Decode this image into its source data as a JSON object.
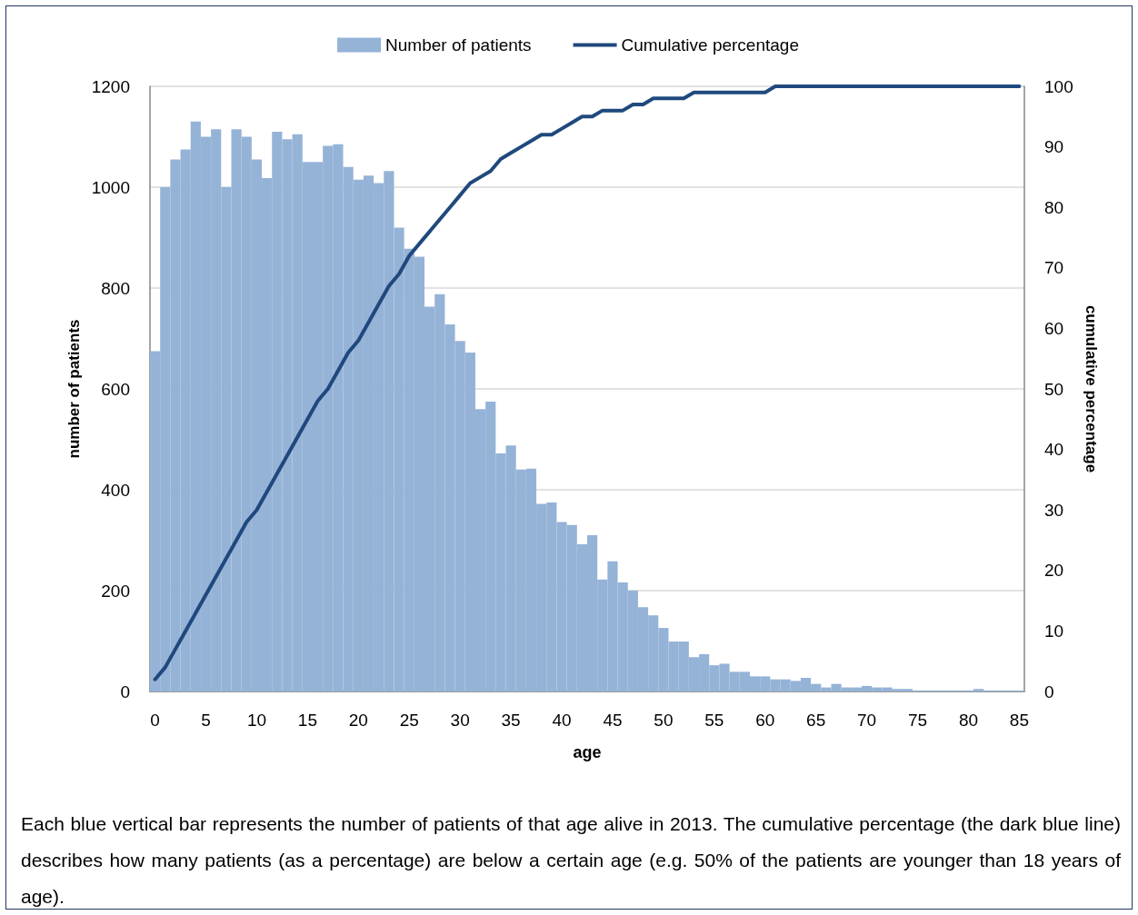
{
  "chart_data": {
    "type": "bar",
    "xlabel": "age",
    "ylabel": "number of patients",
    "y2label": "cumulative percentage",
    "categories": [
      "0",
      null,
      null,
      null,
      null,
      "5",
      null,
      null,
      null,
      null,
      "10",
      null,
      null,
      null,
      null,
      "15",
      null,
      null,
      null,
      null,
      "20",
      null,
      null,
      null,
      null,
      "25",
      null,
      null,
      null,
      null,
      "30",
      null,
      null,
      null,
      null,
      "35",
      null,
      null,
      null,
      null,
      "40",
      null,
      null,
      null,
      null,
      "45",
      null,
      null,
      null,
      null,
      "50",
      null,
      null,
      null,
      null,
      "55",
      null,
      null,
      null,
      null,
      "60",
      null,
      null,
      null,
      null,
      "65",
      null,
      null,
      null,
      null,
      "70",
      null,
      null,
      null,
      null,
      "75",
      null,
      null,
      null,
      null,
      "80",
      null,
      null,
      null,
      null,
      "85"
    ],
    "series": [
      {
        "name": "Number of patients",
        "color": "#95b3d7",
        "values": [
          675,
          1000,
          1055,
          1075,
          1130,
          1100,
          1115,
          1000,
          1115,
          1100,
          1055,
          1018,
          1110,
          1095,
          1105,
          1050,
          1050,
          1082,
          1085,
          1040,
          1015,
          1023,
          1008,
          1032,
          920,
          878,
          862,
          763,
          788,
          728,
          695,
          672,
          560,
          575,
          472,
          488,
          440,
          442,
          372,
          375,
          336,
          330,
          292,
          310,
          222,
          258,
          216,
          200,
          167,
          151,
          126,
          99,
          99,
          68,
          74,
          52,
          55,
          39,
          39,
          30,
          30,
          24,
          24,
          21,
          27,
          15,
          8,
          15,
          8,
          8,
          11,
          8,
          8,
          5,
          5,
          2,
          2,
          2,
          2,
          2,
          2,
          5,
          2,
          2,
          2,
          2
        ]
      },
      {
        "name": "Cumulative percentage",
        "type": "line",
        "axis": "y2",
        "color": "#1f497d",
        "values": [
          2,
          4,
          7,
          10,
          13,
          16,
          19,
          22,
          25,
          28,
          30,
          33,
          36,
          39,
          42,
          45,
          48,
          50,
          53,
          56,
          58,
          61,
          64,
          67,
          69,
          72,
          74,
          76,
          78,
          80,
          82,
          84,
          85,
          86,
          88,
          89,
          90,
          91,
          92,
          92,
          93,
          94,
          95,
          95,
          96,
          96,
          96,
          97,
          97,
          98,
          98,
          98,
          98,
          99,
          99,
          99,
          99,
          99,
          99,
          99,
          99,
          100,
          100,
          100,
          100,
          100,
          100,
          100,
          100,
          100,
          100,
          100,
          100,
          100,
          100,
          100,
          100,
          100,
          100,
          100,
          100,
          100,
          100,
          100,
          100,
          100
        ]
      }
    ],
    "ylim": [
      0,
      1200
    ],
    "yticks": [
      0,
      200,
      400,
      600,
      800,
      1000,
      1200
    ],
    "y2lim": [
      0,
      100
    ],
    "y2ticks": [
      0,
      10,
      20,
      30,
      40,
      50,
      60,
      70,
      80,
      90,
      100
    ],
    "grid": "y",
    "legend": "top",
    "marker": "none",
    "line_style": "solid",
    "annotations": [
      "Each blue vertical bar represents the number of patients of that age alive in 2013. The cumulative percentage (the dark blue line) describes how many patients (as a percentage) are below a certain age (e.g. 50% of the patients are younger than 18 years of age)."
    ]
  }
}
